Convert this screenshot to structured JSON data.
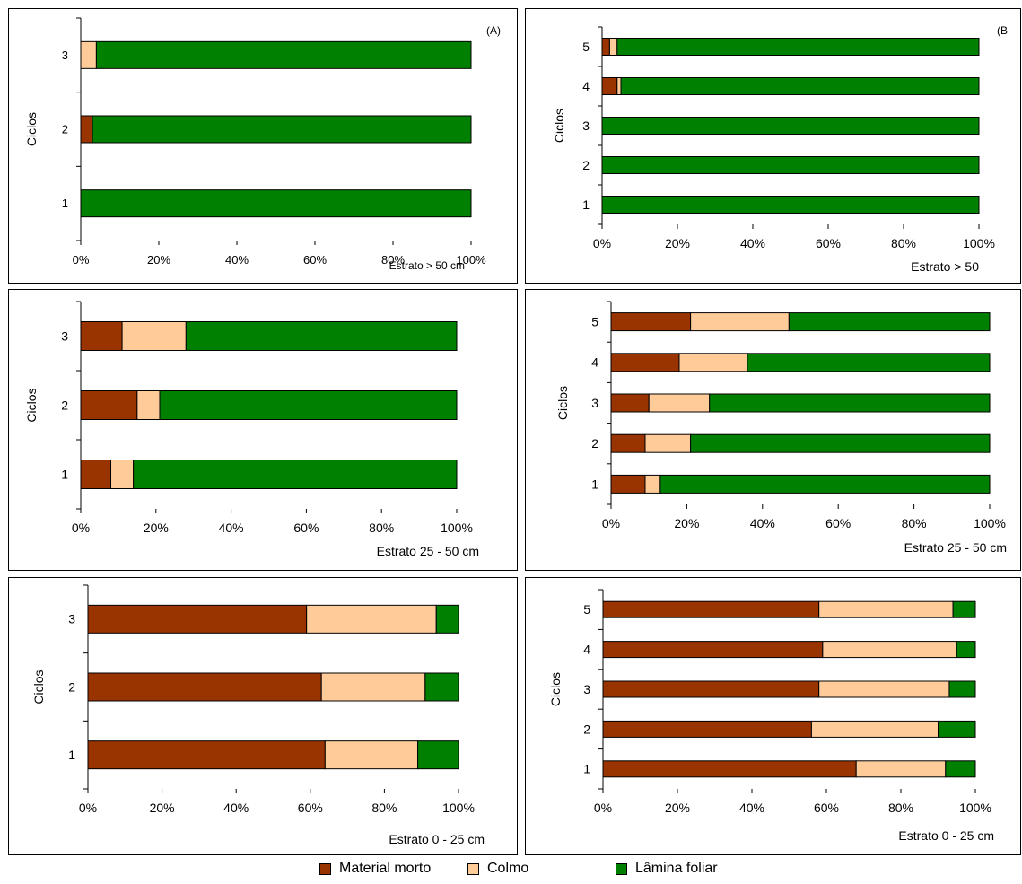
{
  "colors": {
    "material_morto": "#993300",
    "colmo": "#FFCC99",
    "lamina_foliar": "#008000"
  },
  "legend": {
    "material_morto": "Material morto",
    "colmo": "Colmo",
    "lamina_foliar": "Lâmina foliar"
  },
  "chart_data": [
    {
      "type": "bar",
      "orientation": "horizontal",
      "stacked": "percent",
      "panel_label": "(A)",
      "ylabel": "Ciclos",
      "xlabel": "Estrato > 50 cm",
      "categories": [
        "1",
        "2",
        "3"
      ],
      "xticks": [
        "0%",
        "20%",
        "40%",
        "60%",
        "80%",
        "100%"
      ],
      "series": [
        {
          "name": "Material morto",
          "values": [
            0,
            3,
            0
          ]
        },
        {
          "name": "Colmo",
          "values": [
            0,
            0,
            4
          ]
        },
        {
          "name": "Lâmina foliar",
          "values": [
            100,
            97,
            96
          ]
        }
      ]
    },
    {
      "type": "bar",
      "orientation": "horizontal",
      "stacked": "percent",
      "panel_label": "(B",
      "ylabel": "Ciclos",
      "xlabel": "Estrato > 50",
      "categories": [
        "1",
        "2",
        "3",
        "4",
        "5"
      ],
      "xticks": [
        "0%",
        "20%",
        "40%",
        "60%",
        "80%",
        "100%"
      ],
      "series": [
        {
          "name": "Material morto",
          "values": [
            0,
            0,
            0,
            4,
            2
          ]
        },
        {
          "name": "Colmo",
          "values": [
            0,
            0,
            0,
            1,
            2
          ]
        },
        {
          "name": "Lâmina foliar",
          "values": [
            100,
            100,
            100,
            95,
            96
          ]
        }
      ]
    },
    {
      "type": "bar",
      "orientation": "horizontal",
      "stacked": "percent",
      "panel_label": "",
      "ylabel": "Ciclos",
      "xlabel": "Estrato 25 - 50 cm",
      "categories": [
        "1",
        "2",
        "3"
      ],
      "xticks": [
        "0%",
        "20%",
        "40%",
        "60%",
        "80%",
        "100%"
      ],
      "series": [
        {
          "name": "Material morto",
          "values": [
            8,
            15,
            11
          ]
        },
        {
          "name": "Colmo",
          "values": [
            6,
            6,
            17
          ]
        },
        {
          "name": "Lâmina foliar",
          "values": [
            86,
            79,
            72
          ]
        }
      ]
    },
    {
      "type": "bar",
      "orientation": "horizontal",
      "stacked": "percent",
      "panel_label": "",
      "ylabel": "Ciclos",
      "xlabel": "Estrato 25 - 50 cm",
      "categories": [
        "1",
        "2",
        "3",
        "4",
        "5"
      ],
      "xticks": [
        "0%",
        "20%",
        "40%",
        "60%",
        "80%",
        "100%"
      ],
      "series": [
        {
          "name": "Material morto",
          "values": [
            9,
            9,
            10,
            18,
            21
          ]
        },
        {
          "name": "Colmo",
          "values": [
            4,
            12,
            16,
            18,
            26
          ]
        },
        {
          "name": "Lâmina foliar",
          "values": [
            87,
            79,
            74,
            64,
            53
          ]
        }
      ]
    },
    {
      "type": "bar",
      "orientation": "horizontal",
      "stacked": "percent",
      "panel_label": "",
      "ylabel": "Ciclos",
      "xlabel": "Estrato 0 - 25 cm",
      "categories": [
        "1",
        "2",
        "3"
      ],
      "xticks": [
        "0%",
        "20%",
        "40%",
        "60%",
        "80%",
        "100%"
      ],
      "series": [
        {
          "name": "Material morto",
          "values": [
            64,
            63,
            59
          ]
        },
        {
          "name": "Colmo",
          "values": [
            25,
            28,
            35
          ]
        },
        {
          "name": "Lâmina foliar",
          "values": [
            11,
            9,
            6
          ]
        }
      ]
    },
    {
      "type": "bar",
      "orientation": "horizontal",
      "stacked": "percent",
      "panel_label": "",
      "ylabel": "Ciclos",
      "xlabel": "Estrato 0 - 25 cm",
      "categories": [
        "1",
        "2",
        "3",
        "4",
        "5"
      ],
      "xticks": [
        "0%",
        "20%",
        "40%",
        "60%",
        "80%",
        "100%"
      ],
      "series": [
        {
          "name": "Material morto",
          "values": [
            68,
            56,
            58,
            59,
            58
          ]
        },
        {
          "name": "Colmo",
          "values": [
            24,
            34,
            35,
            36,
            36
          ]
        },
        {
          "name": "Lâmina foliar",
          "values": [
            8,
            10,
            7,
            5,
            6
          ]
        }
      ]
    }
  ]
}
